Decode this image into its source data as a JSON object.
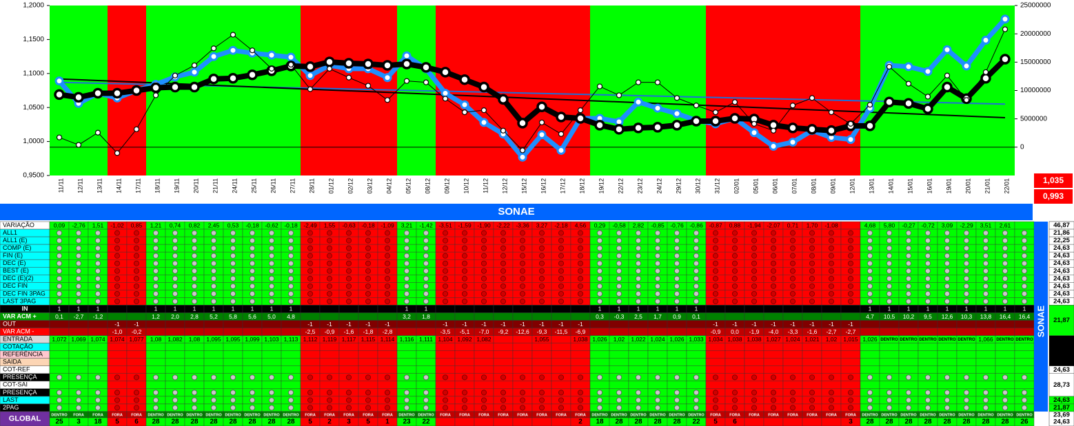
{
  "chart_data": {
    "type": "line",
    "categories": [
      "11/11",
      "12/11",
      "13/11",
      "14/11",
      "17/11",
      "18/11",
      "19/11",
      "20/11",
      "21/11",
      "24/11",
      "25/11",
      "26/11",
      "27/11",
      "28/11",
      "01/12",
      "02/12",
      "03/12",
      "04/12",
      "05/12",
      "08/12",
      "09/12",
      "10/12",
      "11/12",
      "12/12",
      "15/12",
      "16/12",
      "17/12",
      "18/12",
      "19/12",
      "22/12",
      "23/12",
      "24/12",
      "29/12",
      "30/12",
      "31/12",
      "02/01",
      "05/01",
      "06/01",
      "07/01",
      "08/01",
      "09/01",
      "12/01",
      "13/01",
      "14/01",
      "15/01",
      "16/01",
      "19/01",
      "20/01",
      "21/01",
      "22/01"
    ],
    "ylim": [
      0.95,
      1.2
    ],
    "yticks": [
      {
        "value": 0.95,
        "label": "0,9500"
      },
      {
        "value": 1.0,
        "label": "1,0000"
      },
      {
        "value": 1.05,
        "label": "1,0500"
      },
      {
        "value": 1.1,
        "label": "1,1000"
      },
      {
        "value": 1.15,
        "label": "1,1500"
      },
      {
        "value": 1.2,
        "label": "1,2000"
      }
    ],
    "y2lim": [
      -5000000,
      25000000
    ],
    "y2ticks": [
      0,
      5000000,
      10000000,
      15000000,
      20000000,
      25000000
    ],
    "series": [
      {
        "color": "#1e8fff",
        "values": [
          1.089,
          1.056,
          1.071,
          1.064,
          1.075,
          1.084,
          1.095,
          1.102,
          1.125,
          1.134,
          1.13,
          1.127,
          1.124,
          1.097,
          1.112,
          1.107,
          1.107,
          1.094,
          1.126,
          1.107,
          1.071,
          1.054,
          1.028,
          1.011,
          0.977,
          1.01,
          0.987,
          1.034,
          1.034,
          1.029,
          1.058,
          1.049,
          1.041,
          1.031,
          1.026,
          1.034,
          1.013,
          0.993,
          0.999,
          1.016,
          1.006,
          1.003,
          1.049,
          1.112,
          1.11,
          1.103,
          1.135,
          1.111,
          1.149,
          1.18
        ]
      },
      {
        "color": "#000000",
        "values": [
          1.069,
          1.065,
          1.071,
          1.071,
          1.075,
          1.079,
          1.08,
          1.08,
          1.092,
          1.093,
          1.098,
          1.104,
          1.111,
          1.11,
          1.117,
          1.115,
          1.114,
          1.112,
          1.114,
          1.109,
          1.102,
          1.091,
          1.08,
          1.062,
          1.027,
          1.051,
          1.036,
          1.034,
          1.024,
          1.018,
          1.02,
          1.021,
          1.024,
          1.03,
          1.03,
          1.034,
          1.033,
          1.024,
          1.02,
          1.018,
          1.016,
          1.023,
          1.023,
          1.058,
          1.056,
          1.048,
          1.08,
          1.063,
          1.093,
          1.121
        ]
      },
      {
        "color": "#000000",
        "values": [
          1.006,
          0.995,
          1.013,
          0.983,
          1.018,
          1.068,
          1.097,
          1.112,
          1.137,
          1.157,
          1.134,
          1.107,
          1.113,
          1.077,
          1.107,
          1.094,
          1.082,
          1.061,
          1.089,
          1.087,
          1.063,
          1.043,
          1.046,
          1.016,
          0.987,
          1.028,
          1.011,
          1.046,
          1.081,
          1.068,
          1.087,
          1.087,
          1.064,
          1.053,
          1.043,
          1.058,
          1.026,
          1.016,
          1.053,
          1.064,
          1.043,
          1.026,
          1.054,
          1.11,
          1.085,
          1.066,
          1.097,
          1.061,
          1.102,
          1.165
        ]
      }
    ],
    "trendlines": [
      {
        "color": "#1e6fd8",
        "values": [
          1.087,
          1.055
        ]
      },
      {
        "color": "#000000",
        "values": [
          1.092,
          1.035
        ]
      }
    ],
    "side_values": [
      "1,035",
      "0,993"
    ]
  },
  "table": {
    "title": "SONAE",
    "side_title": "SONAE",
    "band_colors": [
      "#00ff00",
      "#00ff00",
      "#00ff00",
      "#ff0000",
      "#ff0000",
      "#00ff00",
      "#00ff00",
      "#00ff00",
      "#00ff00",
      "#00ff00",
      "#00ff00",
      "#00ff00",
      "#00ff00",
      "#ff0000",
      "#ff0000",
      "#ff0000",
      "#ff0000",
      "#ff0000",
      "#00ff00",
      "#00ff00",
      "#ff0000",
      "#ff0000",
      "#ff0000",
      "#ff0000",
      "#ff0000",
      "#ff0000",
      "#ff0000",
      "#ff0000",
      "#00ff00",
      "#00ff00",
      "#00ff00",
      "#00ff00",
      "#00ff00",
      "#00ff00",
      "#ff0000",
      "#ff0000",
      "#ff0000",
      "#ff0000",
      "#ff0000",
      "#ff0000",
      "#ff0000",
      "#ff0000",
      "#00ff00",
      "#00ff00",
      "#00ff00",
      "#00ff00",
      "#00ff00",
      "#00ff00",
      "#00ff00",
      "#00ff00",
      "#00ff00"
    ],
    "rows": [
      {
        "label": "VARIAÇÃO",
        "cells": [
          "0,09",
          "-2,76",
          "1,51",
          "-1,02",
          "0,85",
          "1,21",
          "0,74",
          "0,82",
          "2,45",
          "0,53",
          "-0,18",
          "-0,62",
          "-0,18",
          "-2,49",
          "1,55",
          "-0,63",
          "-0,18",
          "-1,09",
          "3,21",
          "-1,42",
          "-3,51",
          "-1,59",
          "-1,90",
          "-2,22",
          "-3,36",
          "3,27",
          "-2,18",
          "4,56",
          "0,29",
          "-0,58",
          "2,82",
          "-0,85",
          "-0,76",
          "-0,86",
          "-0,87",
          "0,88",
          "-1,94",
          "-2,07",
          "0,71",
          "1,70",
          "-1,08",
          null,
          "4,68",
          "5,80",
          "-0,27",
          "-0,72",
          "3,09",
          "-2,29",
          "3,51",
          "2,61",
          null
        ]
      },
      {
        "label": "ALL1"
      },
      {
        "label": "ALL1 (E)"
      },
      {
        "label": "COMP (E)"
      },
      {
        "label": "FIN (E)"
      },
      {
        "label": "DEC (E)"
      },
      {
        "label": "BEST (E)"
      },
      {
        "label": "DEC (E)(2)"
      },
      {
        "label": "DEC FIN"
      },
      {
        "label": "DEC FIN 3PAG"
      },
      {
        "label": "LAST 3PAG"
      },
      {
        "label": "IN",
        "cells": [
          "1",
          "1",
          "1",
          null,
          null,
          "1",
          "1",
          "1",
          "1",
          "1",
          "1",
          "1",
          "1",
          null,
          null,
          null,
          null,
          null,
          "1",
          "1",
          null,
          null,
          null,
          null,
          null,
          null,
          null,
          null,
          "1",
          "1",
          "1",
          "1",
          "1",
          "1",
          null,
          null,
          null,
          null,
          null,
          null,
          null,
          null,
          "1",
          "1",
          "1",
          "1",
          "1",
          "1",
          "1",
          "1",
          "1"
        ]
      },
      {
        "label": "VAR ACM +",
        "cells": [
          "0,1",
          "-2,7",
          "-1,2",
          null,
          null,
          "1,2",
          "2,0",
          "2,8",
          "5,2",
          "5,8",
          "5,6",
          "5,0",
          "4,8",
          null,
          null,
          null,
          null,
          null,
          "3,2",
          "1,8",
          null,
          null,
          null,
          null,
          null,
          null,
          null,
          null,
          "0,3",
          "-0,3",
          "2,5",
          "1,7",
          "0,9",
          "0,1",
          null,
          null,
          null,
          null,
          null,
          null,
          null,
          null,
          "4,7",
          "10,5",
          "10,2",
          "9,5",
          "12,6",
          "10,3",
          "13,8",
          "16,4",
          "16,4"
        ]
      },
      {
        "label": "OUT",
        "cells": [
          null,
          null,
          null,
          "-1",
          "-1",
          null,
          null,
          null,
          null,
          null,
          null,
          null,
          null,
          "-1",
          "-1",
          "-1",
          "-1",
          "-1",
          null,
          null,
          "-1",
          "-1",
          "-1",
          "-1",
          "-1",
          "-1",
          "-1",
          "-1",
          null,
          null,
          null,
          null,
          null,
          null,
          "-1",
          "-1",
          "-1",
          "-1",
          "-1",
          "-1",
          "-1",
          "-1",
          null,
          null,
          null,
          null,
          null,
          null,
          null,
          null,
          null
        ]
      },
      {
        "label": "VAR ACM -",
        "cells": [
          null,
          null,
          null,
          "-1,0",
          "-0,2",
          null,
          null,
          null,
          null,
          null,
          null,
          null,
          null,
          "-2,5",
          "-0,9",
          "-1,6",
          "-1,8",
          "-2,8",
          null,
          null,
          "-3,5",
          "-5,1",
          "-7,0",
          "-9,2",
          "-12,6",
          "-9,3",
          "-11,5",
          "-6,9",
          null,
          null,
          null,
          null,
          null,
          null,
          "-0,9",
          "0,0",
          "-1,9",
          "-4,0",
          "-3,3",
          "-1,6",
          "-2,7",
          "-2,7",
          null,
          null,
          null,
          null,
          null,
          null,
          null,
          null,
          null
        ]
      },
      {
        "label": "ENTRADA",
        "cells": [
          "1,072",
          "1,069",
          "1,074",
          "1,074",
          "1,077",
          "1,08",
          "1,082",
          "1,08",
          "1,095",
          "1,095",
          "1,099",
          "1,103",
          "1,113",
          "1,112",
          "1,119",
          "1,117",
          "1,115",
          "1,114",
          "1,116",
          "1,111",
          "1,104",
          "1,092",
          "1,082",
          null,
          null,
          "1,055",
          null,
          "1,038",
          "1,026",
          "1,02",
          "1,022",
          "1,024",
          "1,026",
          "1,033",
          "1,034",
          "1,038",
          "1,038",
          "1,027",
          "1,024",
          "1,021",
          "1,02",
          "1,015",
          "1,026",
          "DENTRO",
          "DENTRO",
          "DENTRO",
          "DENTRO",
          "DENTRO",
          "1,066",
          "DENTRO",
          "DENTRO"
        ]
      },
      {
        "label": "COTAÇÃO"
      },
      {
        "label": "REFERÊNCIA"
      },
      {
        "label": "SAIDA"
      },
      {
        "label": "COT-REF"
      },
      {
        "label": "PRESENÇA"
      },
      {
        "label": "COT-SAI"
      },
      {
        "label": "PRESENÇA"
      },
      {
        "label": "LAST"
      },
      {
        "label": "2PAG"
      },
      {
        "label": "GLOBAL"
      }
    ],
    "global_status": [
      "DENTRO",
      "FORA",
      "FORA",
      "FORA",
      "FORA",
      "DENTRO",
      "DENTRO",
      "DENTRO",
      "DENTRO",
      "DENTRO",
      "DENTRO",
      "DENTRO",
      "DENTRO",
      "FORA",
      "FORA",
      "FORA",
      "FORA",
      "FORA",
      "DENTRO",
      "DENTRO",
      "FORA",
      "FORA",
      "FORA",
      "FORA",
      "FORA",
      "FORA",
      "FORA",
      "FORA",
      "DENTRO",
      "DENTRO",
      "DENTRO",
      "DENTRO",
      "DENTRO",
      "DENTRO",
      "FORA",
      "FORA",
      "FORA",
      "FORA",
      "FORA",
      "FORA",
      "FORA",
      "FORA",
      "DENTRO",
      "DENTRO",
      "DENTRO",
      "DENTRO",
      "DENTRO",
      "DENTRO",
      "DENTRO",
      "DENTRO",
      "DENTRO"
    ],
    "global_counts": [
      25,
      3,
      18,
      5,
      6,
      28,
      28,
      28,
      28,
      28,
      28,
      28,
      28,
      5,
      2,
      3,
      5,
      1,
      23,
      22,
      null,
      null,
      null,
      null,
      null,
      null,
      null,
      2,
      18,
      28,
      28,
      28,
      28,
      22,
      5,
      6,
      null,
      null,
      null,
      null,
      null,
      3,
      28,
      28,
      28,
      28,
      28,
      28,
      28,
      28,
      26
    ],
    "totals": [
      "46,87",
      "21,86",
      "22,25",
      "24,63",
      "24,63",
      "24,63",
      "24,63",
      "24,63",
      "24,63",
      "24,63",
      "24,63",
      null,
      "21,87",
      null,
      null,
      null,
      null,
      null,
      null,
      "24,63",
      null,
      "28,73",
      null,
      "24,63",
      "21,87",
      [
        "23,69",
        "24,63"
      ]
    ]
  }
}
